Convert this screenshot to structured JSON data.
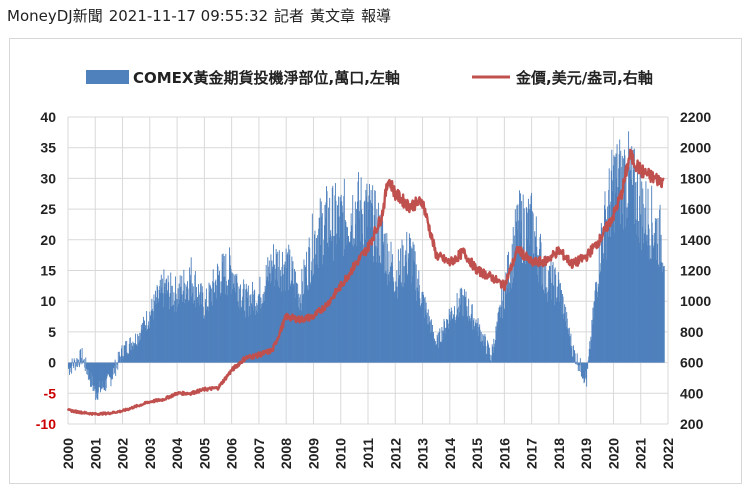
{
  "byline": {
    "source": "MoneyDJ新聞",
    "datetime": "2021-11-17 09:55:32",
    "reporter_label": "記者",
    "reporter_name": "黃文章",
    "suffix": "報導"
  },
  "colors": {
    "bars": "#4f81bd",
    "line": "#c0504d",
    "negative_ticks": "#cc0000",
    "grid": "#d9d9d9",
    "text": "#222222"
  },
  "chart_data": {
    "type": "bar+line",
    "title": "",
    "legend_position": "top",
    "grid": true,
    "x_ticks": [
      "2000",
      "2001",
      "2002",
      "2003",
      "2004",
      "2005",
      "2006",
      "2007",
      "2008",
      "2009",
      "2010",
      "2011",
      "2012",
      "2013",
      "2014",
      "2015",
      "2016",
      "2017",
      "2018",
      "2019",
      "2020",
      "2021",
      "2022"
    ],
    "y_left": {
      "ticks": [
        "40",
        "35",
        "30",
        "25",
        "20",
        "15",
        "10",
        "5",
        "0",
        "-5",
        "-10"
      ],
      "range": [
        -10,
        40
      ]
    },
    "y_right": {
      "ticks": [
        "2200",
        "2000",
        "1800",
        "1600",
        "1400",
        "1200",
        "1000",
        "800",
        "600",
        "400",
        "200"
      ],
      "range": [
        200,
        2200
      ]
    },
    "series": [
      {
        "name": "COMEX黃金期貨投機淨部位,萬口,左軸",
        "type": "bar",
        "axis": "left",
        "x": [
          2000.0,
          2000.5,
          2001.0,
          2001.5,
          2002.0,
          2002.5,
          2003.0,
          2003.5,
          2004.0,
          2004.5,
          2005.0,
          2005.5,
          2006.0,
          2006.5,
          2007.0,
          2007.5,
          2008.0,
          2008.5,
          2009.0,
          2009.5,
          2010.0,
          2010.5,
          2011.0,
          2011.5,
          2012.0,
          2012.5,
          2013.0,
          2013.5,
          2014.0,
          2014.5,
          2015.0,
          2015.5,
          2016.0,
          2016.5,
          2017.0,
          2017.5,
          2018.0,
          2018.5,
          2019.0,
          2019.5,
          2020.0,
          2020.5,
          2021.0,
          2021.5,
          2021.85
        ],
        "values": [
          -1,
          1,
          -5,
          -3,
          2,
          4,
          8,
          12,
          11,
          14,
          9,
          14,
          15,
          10,
          11,
          16,
          16,
          11,
          20,
          23,
          23,
          25,
          24,
          20,
          14,
          18,
          10,
          3,
          8,
          10,
          6,
          1,
          12,
          22,
          22,
          14,
          12,
          2,
          -3,
          19,
          29,
          30,
          25,
          22,
          19
        ]
      },
      {
        "name": "金價,美元/盎司,右軸",
        "type": "line",
        "axis": "right",
        "x": [
          2000.0,
          2000.5,
          2001.0,
          2001.5,
          2002.0,
          2002.5,
          2003.0,
          2003.5,
          2004.0,
          2004.5,
          2005.0,
          2005.5,
          2006.0,
          2006.5,
          2007.0,
          2007.5,
          2008.0,
          2008.5,
          2009.0,
          2009.5,
          2010.0,
          2010.5,
          2011.0,
          2011.5,
          2011.75,
          2012.0,
          2012.5,
          2013.0,
          2013.5,
          2014.0,
          2014.5,
          2015.0,
          2015.5,
          2016.0,
          2016.5,
          2017.0,
          2017.5,
          2018.0,
          2018.5,
          2019.0,
          2019.5,
          2020.0,
          2020.3,
          2020.6,
          2021.0,
          2021.5,
          2021.85
        ],
        "values": [
          290,
          275,
          265,
          270,
          285,
          315,
          345,
          360,
          400,
          400,
          425,
          435,
          550,
          630,
          650,
          680,
          900,
          880,
          900,
          980,
          1100,
          1230,
          1350,
          1550,
          1800,
          1700,
          1620,
          1650,
          1300,
          1250,
          1320,
          1200,
          1160,
          1100,
          1340,
          1250,
          1260,
          1330,
          1240,
          1290,
          1400,
          1560,
          1700,
          1950,
          1850,
          1800,
          1780
        ]
      }
    ]
  }
}
